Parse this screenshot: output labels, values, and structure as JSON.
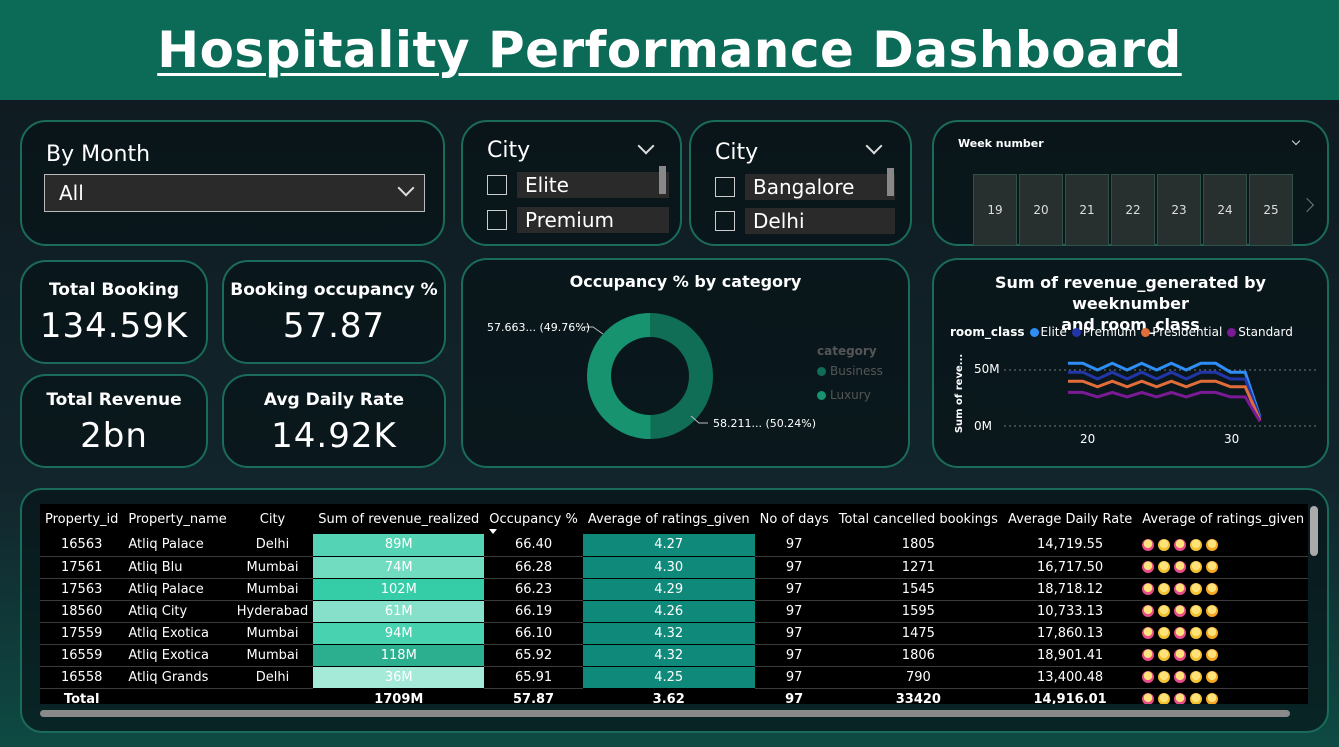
{
  "title": "Hospitality Performance Dashboard",
  "slicer_month": {
    "title": "By Month",
    "selected": "All"
  },
  "slicer_category": {
    "title": "City",
    "options": [
      "Elite",
      "Premium"
    ]
  },
  "slicer_city": {
    "title": "City",
    "options": [
      "Bangalore",
      "Delhi"
    ]
  },
  "slicer_week": {
    "title": "Week number",
    "weeks": [
      "19",
      "20",
      "21",
      "22",
      "23",
      "24",
      "25"
    ]
  },
  "kpis": {
    "total_booking": {
      "label": "Total Booking",
      "value": "134.59K"
    },
    "occupancy": {
      "label": "Booking occupancy %",
      "value": "57.87"
    },
    "revenue": {
      "label": "Total Revenue",
      "value": "2bn"
    },
    "adr": {
      "label": "Avg Daily Rate",
      "value": "14.92K"
    }
  },
  "colors": {
    "header": "#0b6b57",
    "border": "#1b6b5a",
    "business": "#0f6e55",
    "luxury": "#17936f"
  },
  "donut": {
    "title": "Occupancy % by category",
    "legend_title": "category",
    "label_top": "57.663... (49.76%)",
    "label_bottom": "58.211... (50.24%)",
    "legend": [
      "Business",
      "Luxury"
    ]
  },
  "line_chart": {
    "title_line1": "Sum of revenue_generated by weeknumber",
    "title_line2": "and room_class",
    "legend_title": "room_class",
    "legend": [
      "Elite",
      "Premium",
      "Presidential",
      "Standard"
    ],
    "ylabel": "Sum of reve...",
    "yticks": [
      "50M",
      "0M"
    ],
    "xticks": [
      "20",
      "30"
    ]
  },
  "chart_data": {
    "type": "line",
    "title": "Sum of revenue_generated by weeknumber and room_class",
    "xlabel": "",
    "ylabel": "Sum of reve...",
    "x": [
      19,
      20,
      21,
      22,
      23,
      24,
      25,
      26,
      27,
      28,
      29,
      30,
      31,
      32
    ],
    "ylim": [
      0,
      60
    ],
    "series": [
      {
        "name": "Elite",
        "color": "#2f8ef5",
        "values": [
          56,
          56,
          50,
          56,
          50,
          56,
          50,
          56,
          50,
          56,
          56,
          48,
          48,
          8
        ]
      },
      {
        "name": "Premium",
        "color": "#2236a8",
        "values": [
          48,
          48,
          42,
          48,
          42,
          48,
          42,
          48,
          42,
          48,
          48,
          42,
          42,
          7
        ]
      },
      {
        "name": "Presidential",
        "color": "#e06d3a",
        "values": [
          40,
          40,
          35,
          40,
          35,
          40,
          35,
          40,
          35,
          40,
          40,
          35,
          35,
          5
        ]
      },
      {
        "name": "Standard",
        "color": "#7a1a95",
        "values": [
          30,
          30,
          26,
          30,
          26,
          30,
          26,
          30,
          26,
          30,
          30,
          26,
          26,
          4
        ]
      }
    ]
  },
  "table": {
    "headers": [
      "Property_id",
      "Property_name",
      "City",
      "Sum of revenue_realized",
      "Occupancy %",
      "Average of ratings_given",
      "No of days",
      "Total cancelled bookings",
      "Average Daily Rate",
      "Average of ratings_given star rati"
    ],
    "rows": [
      {
        "id": "16563",
        "name": "Atliq Palace",
        "city": "Delhi",
        "revenue": "89M",
        "rev_level": 0.6,
        "occ": "66.40",
        "rating": "4.27",
        "days": "97",
        "cancelled": "1805",
        "adr": "14,719.55"
      },
      {
        "id": "17561",
        "name": "Atliq Blu",
        "city": "Mumbai",
        "revenue": "74M",
        "rev_level": 0.75,
        "occ": "66.28",
        "rating": "4.30",
        "days": "97",
        "cancelled": "1271",
        "adr": "16,717.50"
      },
      {
        "id": "17563",
        "name": "Atliq Palace",
        "city": "Mumbai",
        "revenue": "102M",
        "rev_level": 0.45,
        "occ": "66.23",
        "rating": "4.29",
        "days": "97",
        "cancelled": "1545",
        "adr": "18,718.12"
      },
      {
        "id": "18560",
        "name": "Atliq City",
        "city": "Hyderabad",
        "revenue": "61M",
        "rev_level": 0.85,
        "occ": "66.19",
        "rating": "4.26",
        "days": "97",
        "cancelled": "1595",
        "adr": "10,733.13"
      },
      {
        "id": "17559",
        "name": "Atliq Exotica",
        "city": "Mumbai",
        "revenue": "94M",
        "rev_level": 0.55,
        "occ": "66.10",
        "rating": "4.32",
        "days": "97",
        "cancelled": "1475",
        "adr": "17,860.13"
      },
      {
        "id": "16559",
        "name": "Atliq Exotica",
        "city": "Mumbai",
        "revenue": "118M",
        "rev_level": 0.3,
        "occ": "65.92",
        "rating": "4.32",
        "days": "97",
        "cancelled": "1806",
        "adr": "18,901.41"
      },
      {
        "id": "16558",
        "name": "Atliq Grands",
        "city": "Delhi",
        "revenue": "36M",
        "rev_level": 1.0,
        "occ": "65.91",
        "rating": "4.25",
        "days": "97",
        "cancelled": "790",
        "adr": "13,400.48"
      }
    ],
    "total": {
      "label": "Total",
      "revenue": "1709M",
      "occ": "57.87",
      "rating": "3.62",
      "days": "97",
      "cancelled": "33420",
      "adr": "14,916.01"
    }
  }
}
